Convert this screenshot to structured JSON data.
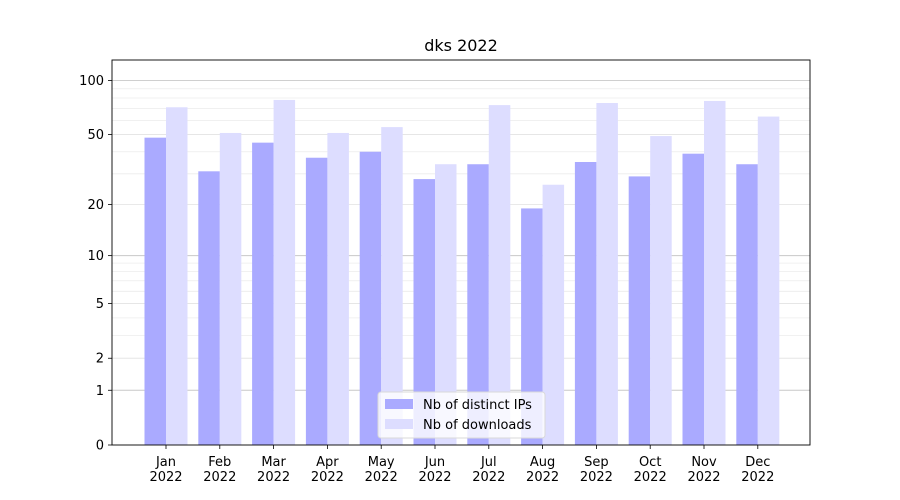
{
  "chart_data": {
    "type": "bar",
    "title": "dks 2022",
    "y_scale": "symlog",
    "y_ticks": [
      0,
      1,
      2,
      5,
      10,
      20,
      50,
      100
    ],
    "ylim": [
      0,
      130
    ],
    "grid": true,
    "legend_position": "bottom-center",
    "categories": [
      "Jan\n2022",
      "Feb\n2022",
      "Mar\n2022",
      "Apr\n2022",
      "May\n2022",
      "Jun\n2022",
      "Jul\n2022",
      "Aug\n2022",
      "Sep\n2022",
      "Oct\n2022",
      "Nov\n2022",
      "Dec\n2022"
    ],
    "series": [
      {
        "name": "Nb of distinct IPs",
        "color": "#aaaaff",
        "values": [
          48,
          31,
          45,
          37,
          40,
          28,
          34,
          19,
          35,
          29,
          39,
          34
        ]
      },
      {
        "name": "Nb of downloads",
        "color": "#ddddff",
        "values": [
          71,
          51,
          78,
          51,
          55,
          34,
          73,
          26,
          75,
          49,
          77,
          63
        ]
      }
    ]
  }
}
